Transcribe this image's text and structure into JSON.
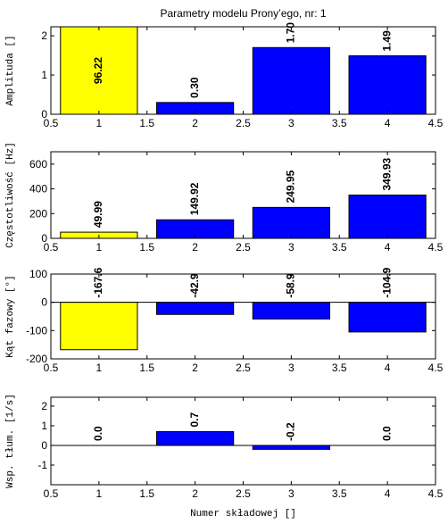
{
  "chart_data": [
    {
      "type": "bar",
      "title": "Parametry modelu Prony’ego, nr: 1",
      "ylabel": "Amplituda []",
      "x": [
        1,
        2,
        3,
        4
      ],
      "values": [
        96.22,
        0.3,
        1.7,
        1.49
      ],
      "value_labels": [
        "96.22",
        "0.30",
        "1.70",
        "1.49"
      ],
      "colors": [
        "#ffff00",
        "#0000ff",
        "#0000ff",
        "#0000ff"
      ],
      "xlim": [
        0.5,
        4.5
      ],
      "xticks": [
        0.5,
        1,
        1.5,
        2,
        2.5,
        3,
        3.5,
        4,
        4.5
      ],
      "ylim": [
        0,
        2.23
      ],
      "yticks": [
        0,
        1,
        2
      ]
    },
    {
      "type": "bar",
      "ylabel": "Częstotliwość [Hz]",
      "x": [
        1,
        2,
        3,
        4
      ],
      "values": [
        49.99,
        149.92,
        249.95,
        349.93
      ],
      "value_labels": [
        "49.99",
        "149.92",
        "249.95",
        "349.93"
      ],
      "colors": [
        "#ffff00",
        "#0000ff",
        "#0000ff",
        "#0000ff"
      ],
      "xlim": [
        0.5,
        4.5
      ],
      "xticks": [
        0.5,
        1,
        1.5,
        2,
        2.5,
        3,
        3.5,
        4,
        4.5
      ],
      "ylim": [
        0,
        700
      ],
      "yticks": [
        0,
        200,
        400,
        600
      ]
    },
    {
      "type": "bar",
      "ylabel": "Kąt fazowy [°]",
      "x": [
        1,
        2,
        3,
        4
      ],
      "values": [
        -167.6,
        -42.9,
        -58.9,
        -104.9
      ],
      "value_labels": [
        "-167.6",
        "-42.9",
        "-58.9",
        "-104.9"
      ],
      "colors": [
        "#ffff00",
        "#0000ff",
        "#0000ff",
        "#0000ff"
      ],
      "xlim": [
        0.5,
        4.5
      ],
      "xticks": [
        0.5,
        1,
        1.5,
        2,
        2.5,
        3,
        3.5,
        4,
        4.5
      ],
      "ylim": [
        -200,
        100
      ],
      "yticks": [
        -200,
        -100,
        0,
        100
      ]
    },
    {
      "type": "bar",
      "ylabel": "Wsp. tłum. [1/s]",
      "xlabel": "Numer składowej []",
      "x": [
        1,
        2,
        3,
        4
      ],
      "values": [
        0.0,
        0.7,
        -0.2,
        0.0
      ],
      "value_labels": [
        "0.0",
        "0.7",
        "-0.2",
        "0.0"
      ],
      "colors": [
        "#ffff00",
        "#0000ff",
        "#0000ff",
        "#0000ff"
      ],
      "xlim": [
        0.5,
        4.5
      ],
      "xticks": [
        0.5,
        1,
        1.5,
        2,
        2.5,
        3,
        3.5,
        4,
        4.5
      ],
      "ylim": [
        -2,
        2.45
      ],
      "yticks": [
        -1,
        0,
        1,
        2
      ]
    }
  ]
}
